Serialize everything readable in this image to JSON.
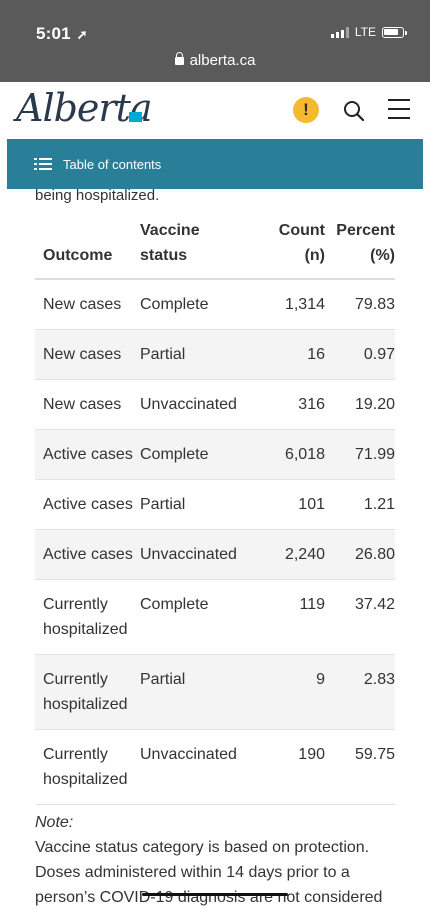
{
  "status_bar": {
    "time": "5:01",
    "network": "LTE"
  },
  "browser": {
    "url": "alberta.ca"
  },
  "header": {
    "logo_text": "Alberta",
    "alert_symbol": "!"
  },
  "toc": {
    "label": "Table of contents"
  },
  "content": {
    "partial_text": "being hospitalized.",
    "table": {
      "headers": {
        "outcome": "Outcome",
        "vaccine_status_1": "Vaccine",
        "vaccine_status_2": "status",
        "count_1": "Count",
        "count_2": "(n)",
        "percent_1": "Percent",
        "percent_2": "(%)"
      },
      "rows": [
        {
          "outcome": "New cases",
          "status": "Complete",
          "count": "1,314",
          "percent": "79.83"
        },
        {
          "outcome": "New cases",
          "status": "Partial",
          "count": "16",
          "percent": "0.97"
        },
        {
          "outcome": "New cases",
          "status": "Unvaccinated",
          "count": "316",
          "percent": "19.20"
        },
        {
          "outcome": "Active cases",
          "status": "Complete",
          "count": "6,018",
          "percent": "71.99"
        },
        {
          "outcome": "Active cases",
          "status": "Partial",
          "count": "101",
          "percent": "1.21"
        },
        {
          "outcome": "Active cases",
          "status": "Unvaccinated",
          "count": "2,240",
          "percent": "26.80"
        },
        {
          "outcome": "Currently hospitalized",
          "status": "Complete",
          "count": "119",
          "percent": "37.42"
        },
        {
          "outcome": "Currently hospitalized",
          "status": "Partial",
          "count": "9",
          "percent": "2.83"
        },
        {
          "outcome": "Currently hospitalized",
          "status": "Unvaccinated",
          "count": "190",
          "percent": "59.75"
        }
      ]
    },
    "note_label": "Note:",
    "note_text": "Vaccine status category is based on protection. Doses administered within 14 days prior to a person’s COVID-19 diagnosis are not considered"
  },
  "colors": {
    "toc_bar": "#2a7f98",
    "alert": "#f5b82e",
    "logo_flag": "#00aad2"
  }
}
